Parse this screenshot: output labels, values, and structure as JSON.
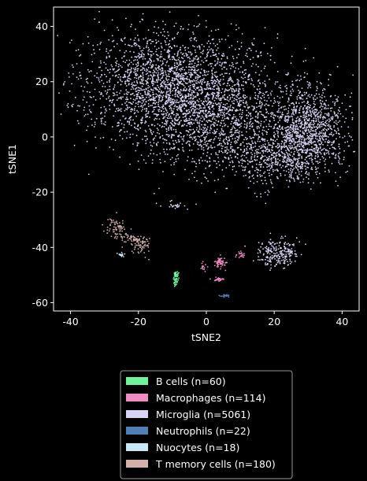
{
  "chart_data": {
    "type": "scatter",
    "xlabel": "tSNE2",
    "ylabel": "tSNE1",
    "xlim": [
      -45,
      45
    ],
    "ylim": [
      -63,
      47
    ],
    "xticks": [
      -40,
      -20,
      0,
      20,
      40
    ],
    "yticks": [
      -60,
      -40,
      -20,
      0,
      20,
      40
    ],
    "legend_position": "bottom-center",
    "background": "#000000",
    "series": [
      {
        "name": "B cells (n=60)",
        "color": "#6ef39a",
        "count": 60,
        "clusters": [
          {
            "cx": -9.0,
            "cy": -51.0,
            "sx": 0.4,
            "sy": 1.6,
            "n": 60
          }
        ]
      },
      {
        "name": "Macrophages (n=114)",
        "color": "#f08cc4",
        "count": 114,
        "clusters": [
          {
            "cx": 4.0,
            "cy": -45.5,
            "sx": 0.9,
            "sy": 1.2,
            "n": 55
          },
          {
            "cx": 3.5,
            "cy": -51.5,
            "sx": 1.0,
            "sy": 0.4,
            "n": 25
          },
          {
            "cx": -0.8,
            "cy": -47.0,
            "sx": 0.5,
            "sy": 1.0,
            "n": 14
          },
          {
            "cx": 10.0,
            "cy": -42.5,
            "sx": 0.6,
            "sy": 0.6,
            "n": 20
          }
        ]
      },
      {
        "name": "Microglia (n=5061)",
        "color": "#d8d4f4",
        "count": 5061,
        "clusters": [
          {
            "cx": -10.0,
            "cy": 18.0,
            "sx": 12.5,
            "sy": 10.5,
            "n": 2300
          },
          {
            "cx": 4.0,
            "cy": 5.0,
            "sx": 11.0,
            "sy": 9.5,
            "n": 1000
          },
          {
            "cx": 30.0,
            "cy": 3.0,
            "sx": 5.5,
            "sy": 8.0,
            "n": 1100
          },
          {
            "cx": 20.0,
            "cy": -8.0,
            "sx": 6.5,
            "sy": 4.5,
            "n": 420
          },
          {
            "cx": 21.0,
            "cy": -42.0,
            "sx": 3.2,
            "sy": 2.6,
            "n": 220
          },
          {
            "cx": -9.0,
            "cy": -25.0,
            "sx": 1.2,
            "sy": 1.0,
            "n": 21
          }
        ]
      },
      {
        "name": "Neutrophils (n=22)",
        "color": "#4f7fb4",
        "count": 22,
        "clusters": [
          {
            "cx": 5.5,
            "cy": -57.5,
            "sx": 0.6,
            "sy": 0.2,
            "n": 22
          }
        ]
      },
      {
        "name": "Nuocytes (n=18)",
        "color": "#c8e8f8",
        "count": 18,
        "clusters": [
          {
            "cx": -25.0,
            "cy": -42.5,
            "sx": 0.5,
            "sy": 0.4,
            "n": 18
          }
        ]
      },
      {
        "name": "T memory cells (n=180)",
        "color": "#d3b0aa",
        "count": 180,
        "clusters": [
          {
            "cx": -26.5,
            "cy": -33.0,
            "sx": 1.6,
            "sy": 2.0,
            "n": 70
          },
          {
            "cx": -19.0,
            "cy": -38.5,
            "sx": 1.5,
            "sy": 1.6,
            "n": 80
          },
          {
            "cx": -23.0,
            "cy": -36.5,
            "sx": 1.4,
            "sy": 1.0,
            "n": 30
          }
        ]
      }
    ]
  }
}
